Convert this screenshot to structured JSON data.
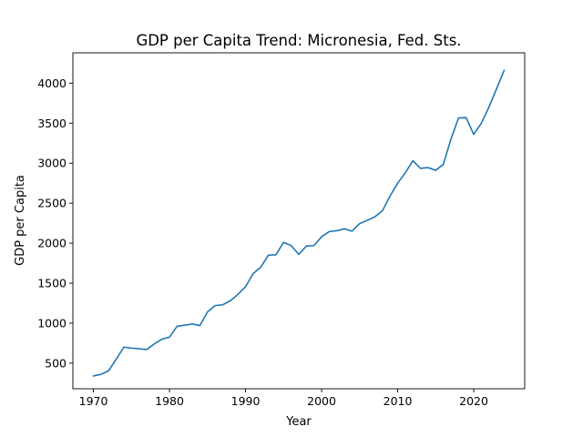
{
  "chart_data": {
    "type": "line",
    "title": "GDP per Capita Trend: Micronesia, Fed. Sts.",
    "xlabel": "Year",
    "ylabel": "GDP per Capita",
    "xlim": [
      1967.3,
      2026.7
    ],
    "ylim": [
      180,
      4380
    ],
    "xticks": [
      1970,
      1980,
      1990,
      2000,
      2010,
      2020
    ],
    "yticks": [
      500,
      1000,
      1500,
      2000,
      2500,
      3000,
      3500,
      4000
    ],
    "grid": false,
    "legend": "none",
    "series": [
      {
        "color": "#1f77b4",
        "x": [
          1970,
          1971,
          1972,
          1973,
          1974,
          1975,
          1976,
          1977,
          1978,
          1979,
          1980,
          1981,
          1982,
          1983,
          1984,
          1985,
          1986,
          1987,
          1988,
          1989,
          1990,
          1991,
          1992,
          1993,
          1994,
          1995,
          1996,
          1997,
          1998,
          1999,
          2000,
          2001,
          2002,
          2003,
          2004,
          2005,
          2006,
          2007,
          2008,
          2009,
          2010,
          2011,
          2012,
          2013,
          2014,
          2015,
          2016,
          2017,
          2018,
          2019,
          2020,
          2021,
          2022,
          2023,
          2024
        ],
        "values": [
          340,
          360,
          405,
          550,
          700,
          688,
          680,
          670,
          740,
          800,
          825,
          960,
          975,
          990,
          970,
          1140,
          1220,
          1230,
          1280,
          1360,
          1455,
          1620,
          1700,
          1850,
          1855,
          2010,
          1970,
          1860,
          1965,
          1970,
          2080,
          2145,
          2155,
          2180,
          2150,
          2245,
          2285,
          2330,
          2405,
          2590,
          2750,
          2880,
          3030,
          2935,
          2945,
          2910,
          2985,
          3300,
          3565,
          3570,
          3360,
          3500,
          3700,
          3930,
          4160
        ]
      }
    ]
  }
}
